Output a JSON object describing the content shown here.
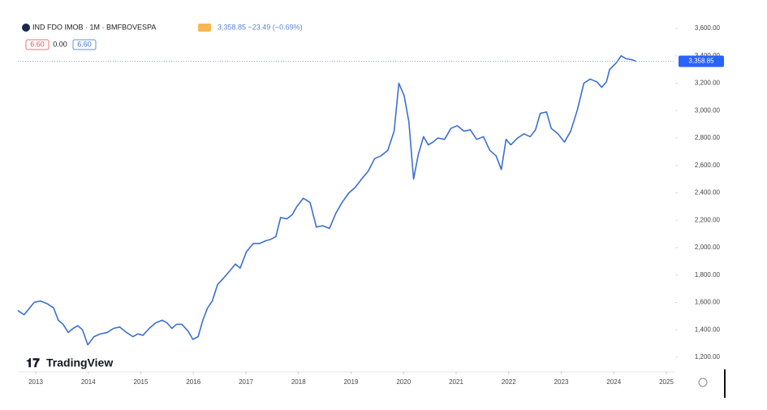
{
  "chart_data": {
    "type": "line",
    "title": "IND FDO IMOB · 1M · BMFBOVESPA",
    "quote": "3,358.85 −23.49 (−0.69%)",
    "buttons": [
      "6.60",
      "0.00",
      "6.60"
    ],
    "last_price_label": "3,358.85",
    "brand": "TradingView",
    "color": "#3c6fd1",
    "xlim": [
      2012.66,
      2025.17
    ],
    "ylim": [
      1093,
      3689
    ],
    "xticks": [
      2013,
      2014,
      2015,
      2016,
      2017,
      2018,
      2019,
      2020,
      2021,
      2022,
      2023,
      2024,
      2025
    ],
    "yticks": [
      {
        "value": 1200,
        "label": "1,200.00"
      },
      {
        "value": 1400,
        "label": "1,400.00"
      },
      {
        "value": 1600,
        "label": "1,600.00"
      },
      {
        "value": 1800,
        "label": "1,800.00"
      },
      {
        "value": 2000,
        "label": "2,000.00"
      },
      {
        "value": 2200,
        "label": "2,200.00"
      },
      {
        "value": 2400,
        "label": "2,400.00"
      },
      {
        "value": 2600,
        "label": "2,600.00"
      },
      {
        "value": 2800,
        "label": "2,800.00"
      },
      {
        "value": 3000,
        "label": "3,000.00"
      },
      {
        "value": 3200,
        "label": "3,200.00"
      },
      {
        "value": 3400,
        "label": "3,400.00"
      },
      {
        "value": 3600,
        "label": "3,600.00"
      }
    ],
    "x": [
      2012.66,
      2012.78,
      2012.97,
      2013.09,
      2013.22,
      2013.34,
      2013.43,
      2013.52,
      2013.62,
      2013.71,
      2013.8,
      2013.89,
      2013.99,
      2014.11,
      2014.23,
      2014.36,
      2014.48,
      2014.6,
      2014.73,
      2014.85,
      2014.94,
      2015.04,
      2015.16,
      2015.28,
      2015.41,
      2015.5,
      2015.59,
      2015.68,
      2015.78,
      2015.9,
      2015.99,
      2016.09,
      2016.18,
      2016.27,
      2016.36,
      2016.46,
      2016.58,
      2016.67,
      2016.8,
      2016.89,
      2017.01,
      2017.14,
      2017.26,
      2017.38,
      2017.47,
      2017.57,
      2017.66,
      2017.78,
      2017.88,
      2017.97,
      2018.09,
      2018.22,
      2018.34,
      2018.46,
      2018.59,
      2018.71,
      2018.83,
      2018.96,
      2019.08,
      2019.2,
      2019.33,
      2019.45,
      2019.57,
      2019.7,
      2019.82,
      2019.91,
      2020.01,
      2020.1,
      2020.19,
      2020.28,
      2020.38,
      2020.47,
      2020.56,
      2020.65,
      2020.78,
      2020.9,
      2021.02,
      2021.15,
      2021.27,
      2021.39,
      2021.52,
      2021.64,
      2021.76,
      2021.86,
      2021.95,
      2022.04,
      2022.17,
      2022.29,
      2022.41,
      2022.51,
      2022.6,
      2022.72,
      2022.81,
      2022.94,
      2023.06,
      2023.18,
      2023.31,
      2023.43,
      2023.55,
      2023.68,
      2023.77,
      2023.86,
      2023.92,
      2024.05,
      2024.14,
      2024.23,
      2024.36,
      2024.42
    ],
    "values": [
      1540,
      1510,
      1600,
      1610,
      1590,
      1560,
      1470,
      1440,
      1380,
      1410,
      1430,
      1400,
      1290,
      1350,
      1370,
      1380,
      1410,
      1420,
      1380,
      1350,
      1370,
      1360,
      1410,
      1450,
      1470,
      1450,
      1410,
      1440,
      1440,
      1390,
      1330,
      1350,
      1470,
      1560,
      1610,
      1730,
      1780,
      1820,
      1880,
      1850,
      1970,
      2030,
      2030,
      2050,
      2060,
      2080,
      2220,
      2210,
      2240,
      2300,
      2360,
      2330,
      2150,
      2160,
      2140,
      2250,
      2330,
      2400,
      2440,
      2500,
      2560,
      2650,
      2670,
      2710,
      2850,
      3200,
      3110,
      2920,
      2500,
      2680,
      2810,
      2750,
      2770,
      2800,
      2790,
      2870,
      2890,
      2850,
      2860,
      2790,
      2810,
      2710,
      2670,
      2570,
      2790,
      2750,
      2800,
      2830,
      2810,
      2860,
      2980,
      2990,
      2870,
      2830,
      2770,
      2850,
      3010,
      3200,
      3230,
      3210,
      3170,
      3210,
      3300,
      3350,
      3400,
      3380,
      3370,
      3360
    ]
  }
}
